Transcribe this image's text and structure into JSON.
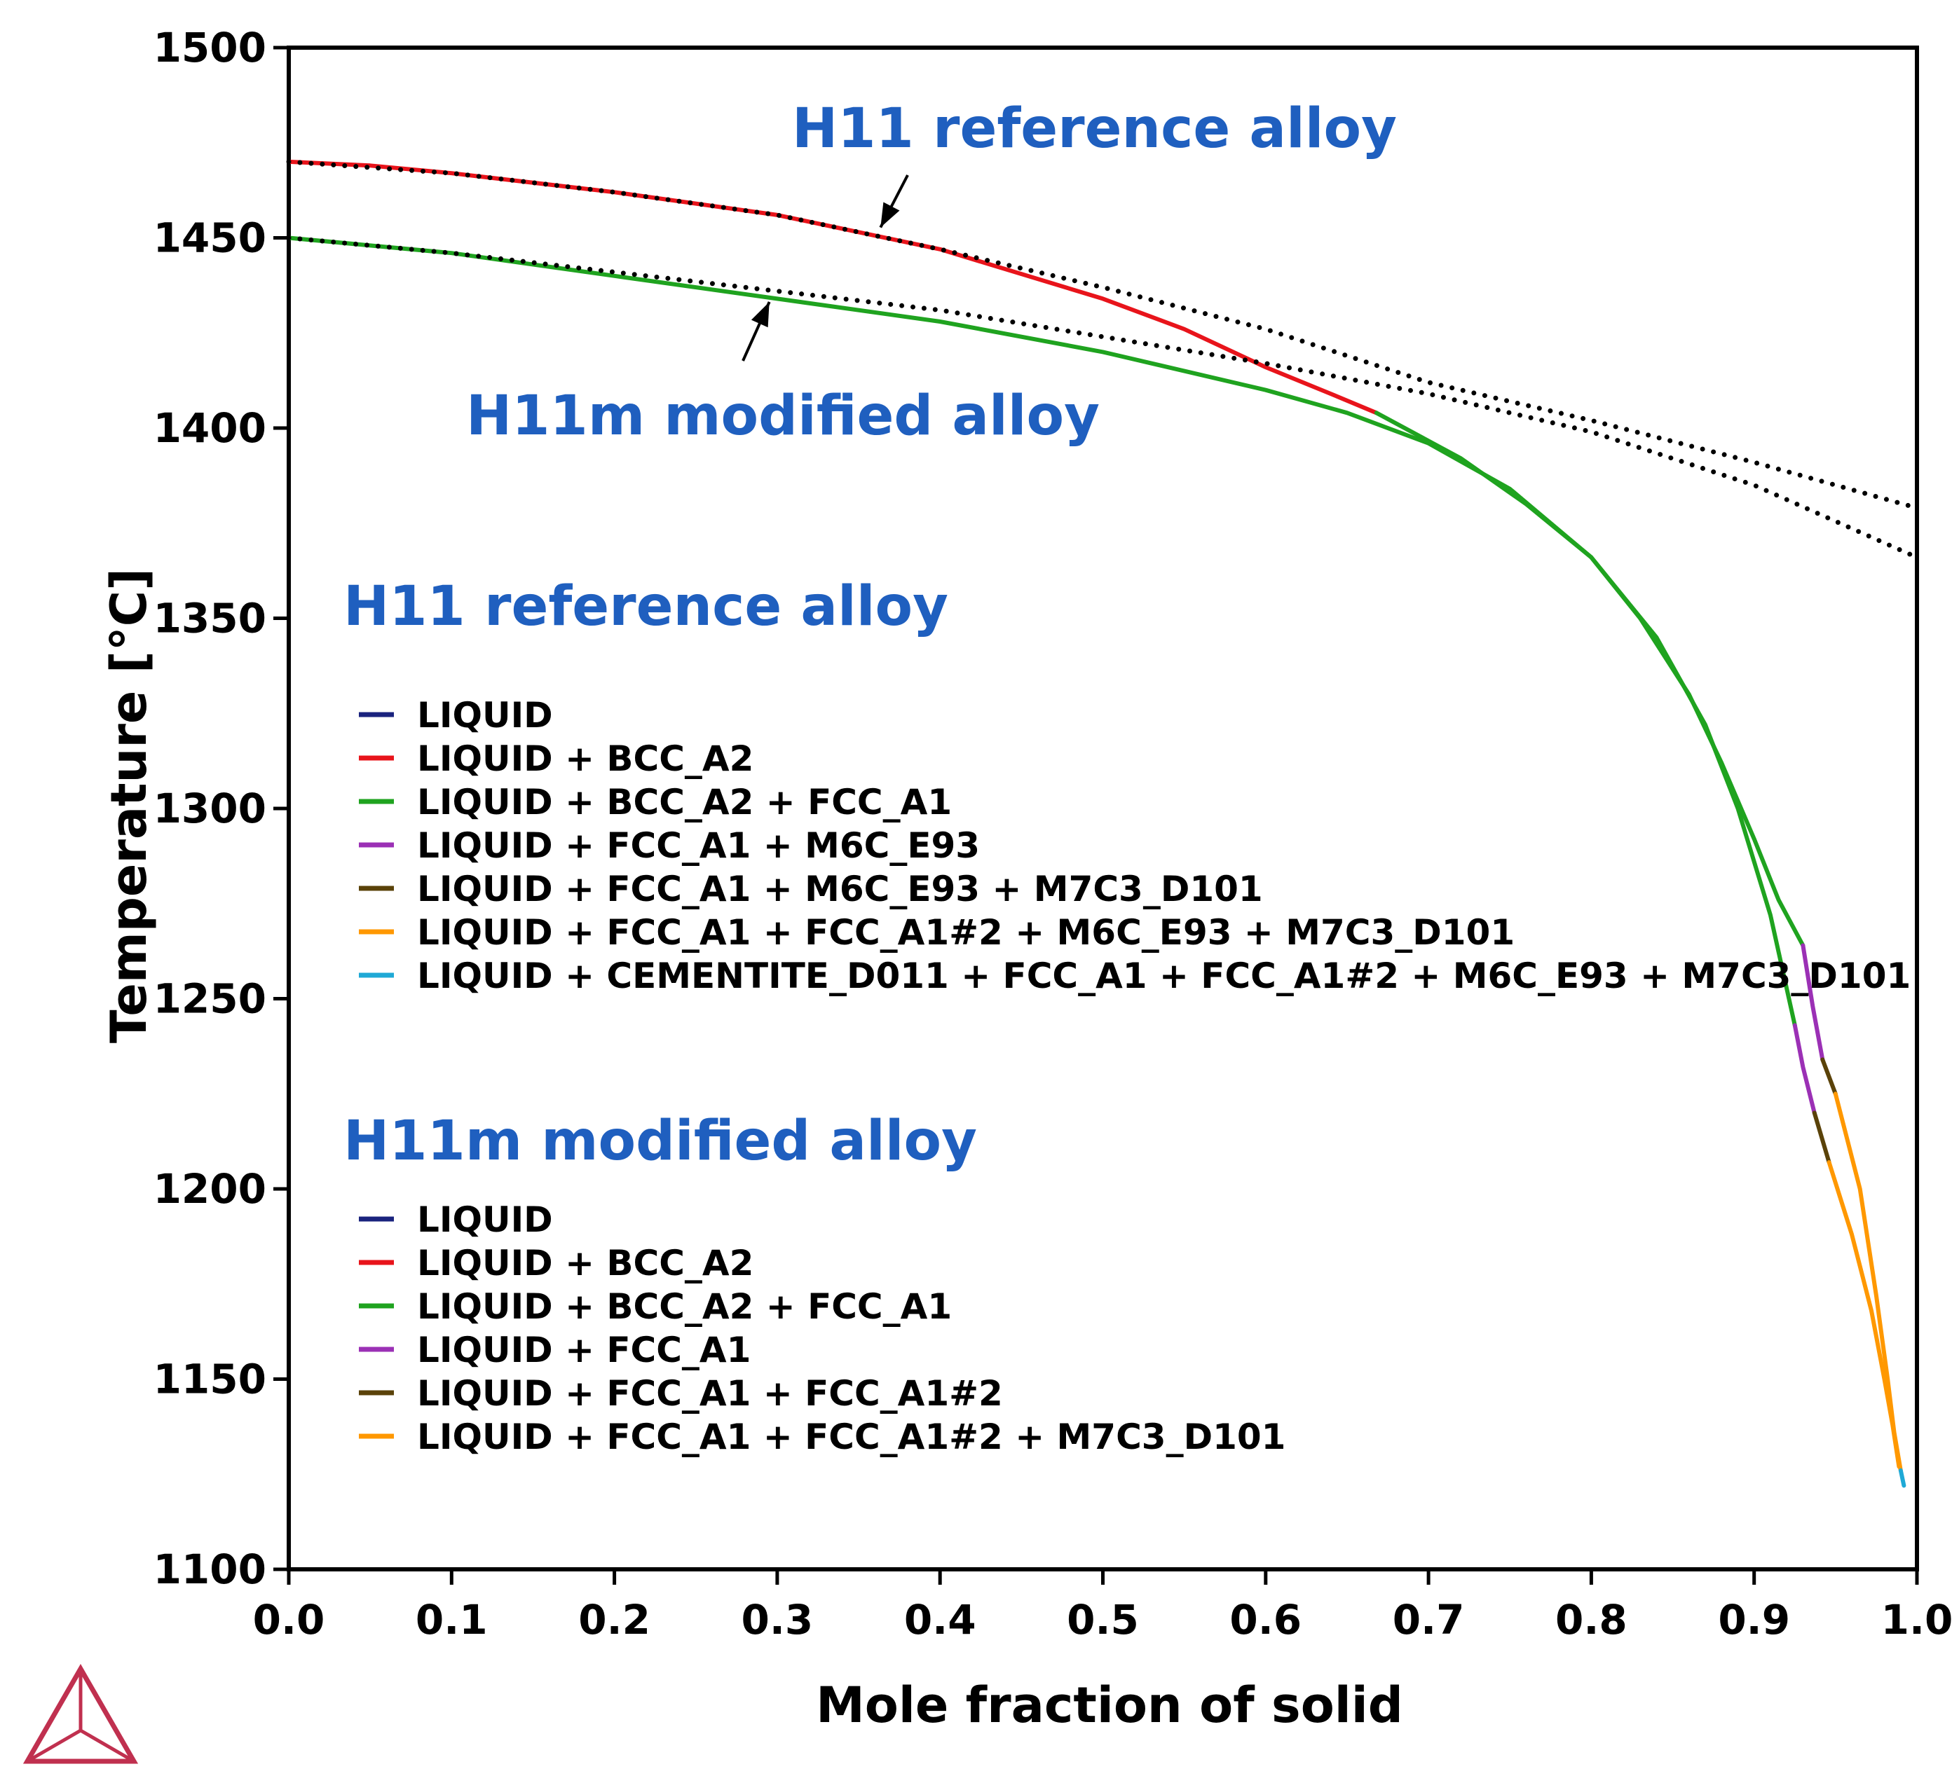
{
  "chart_data": {
    "type": "line",
    "title": "",
    "xlabel": "Mole fraction of solid",
    "ylabel": "Temperature [°C]",
    "xlim": [
      0.0,
      1.0
    ],
    "ylim": [
      1100,
      1500
    ],
    "xticks": [
      "0.0",
      "0.1",
      "0.2",
      "0.3",
      "0.4",
      "0.5",
      "0.6",
      "0.7",
      "0.8",
      "0.9",
      "1.0"
    ],
    "yticks": [
      "1100",
      "1150",
      "1200",
      "1250",
      "1300",
      "1350",
      "1400",
      "1450",
      "1500"
    ],
    "grid": false,
    "annotations": [
      {
        "text": "H11 reference alloy",
        "points_to": [
          0.36,
          1452
        ]
      },
      {
        "text": "H11m modified alloy",
        "points_to": [
          0.29,
          1435
        ]
      }
    ],
    "colors": {
      "LIQUID": "#1a237e",
      "BCC": "#e8141b",
      "BCC_FCC": "#1fa31f",
      "M6C": "#9b30b5",
      "M7C3": "#5a4209",
      "FCC2": "#ff9800",
      "CEMENTITE": "#1fa9d6",
      "scheil": "#000000",
      "arrow": "#000000",
      "logo": "#c0304f"
    },
    "series": [
      {
        "name": "H11 reference alloy — LIQUID + BCC_A2",
        "alloy": "H11",
        "phase": "BCC",
        "x": [
          0.0,
          0.05,
          0.1,
          0.2,
          0.3,
          0.4,
          0.5,
          0.55,
          0.6,
          0.64,
          0.668
        ],
        "y": [
          1470,
          1469,
          1467,
          1462,
          1456,
          1447,
          1434,
          1426,
          1416,
          1409,
          1404
        ]
      },
      {
        "name": "H11 reference alloy — LIQUID + BCC_A2 + FCC_A1",
        "alloy": "H11",
        "phase": "BCC_FCC",
        "x": [
          0.668,
          0.72,
          0.76,
          0.8,
          0.83,
          0.86,
          0.88,
          0.9,
          0.915,
          0.93
        ],
        "y": [
          1404,
          1392,
          1380,
          1366,
          1350,
          1330,
          1312,
          1292,
          1276,
          1264
        ]
      },
      {
        "name": "H11 reference alloy — LIQUID + FCC_A1 + M6C_E93",
        "alloy": "H11",
        "phase": "M6C",
        "x": [
          0.93,
          0.936,
          0.942
        ],
        "y": [
          1264,
          1248,
          1234
        ]
      },
      {
        "name": "H11 reference alloy — LIQUID + FCC_A1 + M6C_E93 + M7C3_D101",
        "alloy": "H11",
        "phase": "M7C3",
        "x": [
          0.942,
          0.95
        ],
        "y": [
          1234,
          1225
        ]
      },
      {
        "name": "H11 reference alloy — LIQUID + FCC_A1 + FCC_A1#2 + M6C_E93 + M7C3_D101",
        "alloy": "H11",
        "phase": "FCC2",
        "x": [
          0.95,
          0.965,
          0.975,
          0.982,
          0.986,
          0.99
        ],
        "y": [
          1225,
          1200,
          1172,
          1150,
          1136,
          1126
        ]
      },
      {
        "name": "H11 reference alloy — LIQUID + CEMENTITE_D011 + FCC_A1 + FCC_A1#2 + M6C_E93 + M7C3_D101",
        "alloy": "H11",
        "phase": "CEMENTITE",
        "x": [
          0.99,
          0.992
        ],
        "y": [
          1126,
          1122
        ]
      },
      {
        "name": "H11m modified alloy — LIQUID + BCC_A2 + FCC_A1",
        "alloy": "H11m",
        "phase": "BCC_FCC",
        "x": [
          0.0,
          0.1,
          0.2,
          0.3,
          0.4,
          0.5,
          0.6,
          0.65,
          0.7,
          0.75,
          0.8,
          0.84,
          0.87,
          0.89,
          0.91,
          0.925
        ],
        "y": [
          1450,
          1446,
          1440,
          1434,
          1428,
          1420,
          1410,
          1404,
          1396,
          1384,
          1366,
          1345,
          1322,
          1300,
          1272,
          1243
        ]
      },
      {
        "name": "H11m modified alloy — LIQUID + FCC_A1",
        "alloy": "H11m",
        "phase": "M6C",
        "x": [
          0.925,
          0.93,
          0.937
        ],
        "y": [
          1243,
          1232,
          1220
        ]
      },
      {
        "name": "H11m modified alloy — LIQUID + FCC_A1 + FCC_A1#2",
        "alloy": "H11m",
        "phase": "M7C3",
        "x": [
          0.937,
          0.946
        ],
        "y": [
          1220,
          1207
        ]
      },
      {
        "name": "H11m modified alloy — LIQUID + FCC_A1 + FCC_A1#2 + M7C3_D101",
        "alloy": "H11m",
        "phase": "FCC2",
        "x": [
          0.946,
          0.96,
          0.972,
          0.98,
          0.985,
          0.989
        ],
        "y": [
          1207,
          1188,
          1168,
          1150,
          1138,
          1127
        ]
      },
      {
        "name": "H11 reference alloy — equilibrium (dotted)",
        "alloy": "H11",
        "phase": "scheil",
        "x": [
          0.0,
          0.1,
          0.2,
          0.3,
          0.4,
          0.5,
          0.6,
          0.7,
          0.8,
          0.9,
          1.0
        ],
        "y": [
          1470,
          1467,
          1462,
          1456,
          1447,
          1437,
          1426,
          1412,
          1402,
          1391,
          1379
        ]
      },
      {
        "name": "H11m modified alloy — equilibrium (dotted)",
        "alloy": "H11m",
        "phase": "scheil",
        "x": [
          0.0,
          0.1,
          0.2,
          0.3,
          0.4,
          0.5,
          0.6,
          0.7,
          0.8,
          0.9,
          1.0
        ],
        "y": [
          1450,
          1446,
          1441,
          1436,
          1431,
          1424,
          1417,
          1409,
          1399,
          1385,
          1366
        ]
      }
    ],
    "legends": [
      {
        "title": "H11 reference alloy",
        "entries": [
          {
            "label": "LIQUID",
            "phase": "LIQUID"
          },
          {
            "label": "LIQUID + BCC_A2",
            "phase": "BCC"
          },
          {
            "label": "LIQUID + BCC_A2 + FCC_A1",
            "phase": "BCC_FCC"
          },
          {
            "label": "LIQUID + FCC_A1 + M6C_E93",
            "phase": "M6C"
          },
          {
            "label": "LIQUID + FCC_A1 + M6C_E93 + M7C3_D101",
            "phase": "M7C3"
          },
          {
            "label": "LIQUID + FCC_A1 + FCC_A1#2 + M6C_E93 + M7C3_D101",
            "phase": "FCC2"
          },
          {
            "label": "LIQUID + CEMENTITE_D011 + FCC_A1 + FCC_A1#2 + M6C_E93 + M7C3_D101",
            "phase": "CEMENTITE"
          }
        ]
      },
      {
        "title": "H11m modified alloy",
        "entries": [
          {
            "label": "LIQUID",
            "phase": "LIQUID"
          },
          {
            "label": "LIQUID + BCC_A2",
            "phase": "BCC"
          },
          {
            "label": "LIQUID + BCC_A2 + FCC_A1",
            "phase": "BCC_FCC"
          },
          {
            "label": "LIQUID + FCC_A1",
            "phase": "M6C"
          },
          {
            "label": "LIQUID + FCC_A1 + FCC_A1#2",
            "phase": "M7C3"
          },
          {
            "label": "LIQUID + FCC_A1 + FCC_A1#2 + M7C3_D101",
            "phase": "FCC2"
          }
        ]
      }
    ]
  }
}
